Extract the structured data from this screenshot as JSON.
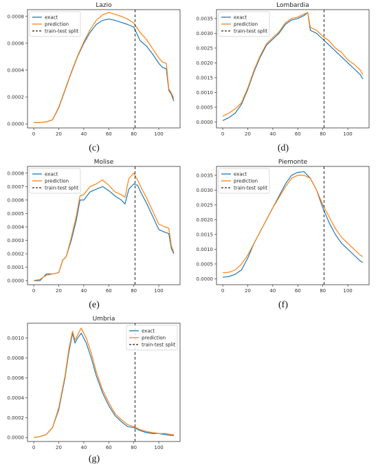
{
  "colors": {
    "exact": "#1f77b4",
    "prediction": "#ff7f0e",
    "split": "#222222"
  },
  "chart_data": [
    {
      "caption": "(c)",
      "type": "line",
      "title": "Lazio",
      "xlim": [
        -5,
        117
      ],
      "ylim": [
        -3e-05,
        0.00085
      ],
      "xticks": [
        0,
        20,
        40,
        60,
        80,
        100
      ],
      "yticks": [
        0.0,
        0.0002,
        0.0004,
        0.0006,
        0.0008
      ],
      "ytick_labels": [
        "0.0000",
        "0.0002",
        "0.0004",
        "0.0006",
        "0.0008"
      ],
      "split_x": 81,
      "legend": {
        "position": "top-left",
        "entries": [
          "exact",
          "prediction",
          "train-test split"
        ]
      },
      "series": [
        {
          "name": "exact",
          "x": [
            0,
            5,
            10,
            15,
            20,
            25,
            30,
            35,
            40,
            45,
            50,
            55,
            60,
            65,
            70,
            75,
            80,
            85,
            90,
            95,
            100,
            103,
            106,
            108,
            110,
            112
          ],
          "values": [
            1e-05,
            1e-05,
            1.5e-05,
            3e-05,
            0.00012,
            0.00025,
            0.00038,
            0.0005,
            0.0006,
            0.00068,
            0.00074,
            0.00077,
            0.00078,
            0.00077,
            0.000755,
            0.00074,
            0.00072,
            0.00062,
            0.00058,
            0.00052,
            0.00045,
            0.00042,
            0.00041,
            0.00025,
            0.00022,
            0.00017
          ]
        },
        {
          "name": "prediction",
          "x": [
            0,
            5,
            10,
            15,
            20,
            25,
            30,
            35,
            40,
            45,
            50,
            55,
            60,
            65,
            70,
            75,
            80,
            85,
            90,
            95,
            100,
            103,
            106,
            108,
            110,
            112
          ],
          "values": [
            1e-05,
            1e-05,
            1.5e-05,
            3e-05,
            0.000125,
            0.000255,
            0.000385,
            0.000505,
            0.00061,
            0.0007,
            0.00077,
            0.00081,
            0.00083,
            0.000815,
            0.0008,
            0.00078,
            0.00075,
            0.00068,
            0.00063,
            0.00056,
            0.00049,
            0.00046,
            0.00045,
            0.00026,
            0.00023,
            0.00019
          ]
        }
      ]
    },
    {
      "caption": "(d)",
      "type": "line",
      "title": "Lombardia",
      "xlim": [
        -5,
        117
      ],
      "ylim": [
        -0.0002,
        0.0038
      ],
      "xticks": [
        0,
        20,
        40,
        60,
        80,
        100
      ],
      "yticks": [
        0.0,
        0.0005,
        0.001,
        0.0015,
        0.002,
        0.0025,
        0.003,
        0.0035
      ],
      "ytick_labels": [
        "0.0000",
        "0.0005",
        "0.0010",
        "0.0015",
        "0.0020",
        "0.0025",
        "0.0030",
        "0.0035"
      ],
      "split_x": 81,
      "legend": {
        "position": "top-left",
        "entries": [
          "exact",
          "prediction",
          "train-test split"
        ]
      },
      "series": [
        {
          "name": "exact",
          "x": [
            0,
            5,
            10,
            15,
            20,
            25,
            30,
            35,
            40,
            45,
            50,
            55,
            60,
            65,
            68,
            70,
            75,
            80,
            85,
            90,
            95,
            100,
            105,
            110,
            112
          ],
          "values": [
            5e-05,
            0.00015,
            0.0003,
            0.0006,
            0.0011,
            0.0017,
            0.0022,
            0.0026,
            0.0028,
            0.003,
            0.0033,
            0.00345,
            0.0035,
            0.0036,
            0.0037,
            0.0031,
            0.003,
            0.0028,
            0.0026,
            0.0024,
            0.0022,
            0.002,
            0.0018,
            0.0016,
            0.00145
          ]
        },
        {
          "name": "prediction",
          "x": [
            0,
            5,
            10,
            15,
            20,
            25,
            30,
            35,
            40,
            45,
            50,
            55,
            60,
            65,
            68,
            70,
            75,
            80,
            85,
            90,
            95,
            100,
            105,
            110,
            112
          ],
          "values": [
            0.0002,
            0.0003,
            0.00045,
            0.00065,
            0.00115,
            0.00175,
            0.00225,
            0.00265,
            0.00285,
            0.00305,
            0.00335,
            0.0035,
            0.00355,
            0.00365,
            0.0037,
            0.0032,
            0.0031,
            0.0029,
            0.00275,
            0.0025,
            0.00235,
            0.0021,
            0.00195,
            0.00175,
            0.0016
          ]
        }
      ]
    },
    {
      "caption": "(e)",
      "type": "line",
      "title": "Molise",
      "xlim": [
        -5,
        117
      ],
      "ylim": [
        -3e-05,
        0.00085
      ],
      "xticks": [
        0,
        20,
        40,
        60,
        80,
        100
      ],
      "yticks": [
        0.0,
        0.0001,
        0.0002,
        0.0003,
        0.0004,
        0.0005,
        0.0006,
        0.0007,
        0.0008
      ],
      "ytick_labels": [
        "0.0000",
        "0.0001",
        "0.0002",
        "0.0003",
        "0.0004",
        "0.0005",
        "0.0006",
        "0.0007",
        "0.0008"
      ],
      "split_x": 81,
      "legend": {
        "position": "top-left",
        "entries": [
          "exact",
          "prediction",
          "train-test split"
        ]
      },
      "series": [
        {
          "name": "exact",
          "x": [
            0,
            5,
            10,
            15,
            20,
            23,
            26,
            30,
            34,
            37,
            40,
            45,
            50,
            55,
            60,
            65,
            70,
            73,
            76,
            80,
            83,
            86,
            90,
            95,
            100,
            105,
            108,
            110,
            112
          ],
          "values": [
            0.0,
            0.0,
            5e-05,
            5e-05,
            6e-05,
            0.00015,
            0.00018,
            0.0003,
            0.00045,
            0.0006,
            0.0006,
            0.00066,
            0.00068,
            0.0007,
            0.00067,
            0.00063,
            0.0006,
            0.00057,
            0.00068,
            0.00072,
            0.00071,
            0.00065,
            0.00058,
            0.00048,
            0.00038,
            0.00036,
            0.00035,
            0.00024,
            0.0002
          ]
        },
        {
          "name": "prediction",
          "x": [
            0,
            5,
            10,
            15,
            20,
            23,
            26,
            30,
            34,
            37,
            40,
            45,
            50,
            55,
            60,
            65,
            70,
            73,
            76,
            80,
            83,
            86,
            90,
            95,
            100,
            105,
            108,
            110,
            112
          ],
          "values": [
            0.0,
            1e-05,
            4e-05,
            5e-05,
            6e-05,
            0.00015,
            0.00018,
            0.00032,
            0.00048,
            0.00063,
            0.00064,
            0.0007,
            0.00072,
            0.00075,
            0.00071,
            0.00066,
            0.00064,
            0.00062,
            0.00076,
            0.0008,
            0.00075,
            0.00069,
            0.00062,
            0.00052,
            0.00042,
            0.0004,
            0.00039,
            0.00026,
            0.00021
          ]
        }
      ]
    },
    {
      "caption": "(f)",
      "type": "line",
      "title": "Piemonte",
      "xlim": [
        -5,
        117
      ],
      "ylim": [
        -0.0002,
        0.0038
      ],
      "xticks": [
        0,
        20,
        40,
        60,
        80,
        100
      ],
      "yticks": [
        0.0,
        0.0005,
        0.001,
        0.0015,
        0.002,
        0.0025,
        0.003,
        0.0035
      ],
      "ytick_labels": [
        "0.0000",
        "0.0005",
        "0.0010",
        "0.0015",
        "0.0020",
        "0.0025",
        "0.0030",
        "0.0035"
      ],
      "split_x": 81,
      "legend": {
        "position": "top-left",
        "entries": [
          "exact",
          "prediction",
          "train-test split"
        ]
      },
      "series": [
        {
          "name": "exact",
          "x": [
            0,
            5,
            10,
            15,
            20,
            25,
            30,
            35,
            40,
            45,
            50,
            55,
            60,
            65,
            70,
            75,
            80,
            85,
            90,
            95,
            100,
            105,
            110,
            112
          ],
          "values": [
            5e-05,
            8e-05,
            0.00015,
            0.0003,
            0.0007,
            0.0012,
            0.0016,
            0.002,
            0.0024,
            0.0028,
            0.0032,
            0.0035,
            0.0036,
            0.00362,
            0.0034,
            0.003,
            0.0024,
            0.0019,
            0.0015,
            0.0012,
            0.001,
            0.0008,
            0.0006,
            0.00055
          ]
        },
        {
          "name": "prediction",
          "x": [
            0,
            5,
            10,
            15,
            20,
            25,
            30,
            35,
            40,
            45,
            50,
            55,
            60,
            65,
            70,
            75,
            80,
            85,
            90,
            95,
            100,
            105,
            110,
            112
          ],
          "values": [
            0.0002,
            0.00022,
            0.0003,
            0.0005,
            0.0008,
            0.0012,
            0.0016,
            0.002,
            0.0024,
            0.00275,
            0.0031,
            0.0034,
            0.0035,
            0.0035,
            0.0034,
            0.003,
            0.0025,
            0.0021,
            0.0017,
            0.0014,
            0.0012,
            0.001,
            0.0008,
            0.00075
          ]
        }
      ]
    },
    {
      "caption": "(g)",
      "type": "line",
      "title": "Umbria",
      "xlim": [
        -5,
        117
      ],
      "ylim": [
        -4e-05,
        0.00115
      ],
      "xticks": [
        0,
        20,
        40,
        60,
        80,
        100
      ],
      "yticks": [
        0.0,
        0.0002,
        0.0004,
        0.0006,
        0.0008,
        0.001
      ],
      "ytick_labels": [
        "0.0000",
        "0.0002",
        "0.0004",
        "0.0006",
        "0.0008",
        "0.0010"
      ],
      "split_x": 81,
      "legend": {
        "position": "top-right",
        "entries": [
          "exact",
          "prediction",
          "train-test split"
        ]
      },
      "series": [
        {
          "name": "exact",
          "x": [
            0,
            5,
            10,
            15,
            20,
            25,
            28,
            31,
            33,
            35,
            38,
            42,
            46,
            50,
            55,
            60,
            65,
            70,
            75,
            80,
            85,
            90,
            95,
            100,
            105,
            110,
            112
          ],
          "values": [
            0.0,
            1e-05,
            3e-05,
            0.0001,
            0.00028,
            0.0006,
            0.00085,
            0.00105,
            0.00095,
            0.001,
            0.00105,
            0.00095,
            0.0008,
            0.00062,
            0.00045,
            0.00032,
            0.00022,
            0.00016,
            0.00011,
            0.0001,
            7e-05,
            5e-05,
            4e-05,
            4e-05,
            3e-05,
            2e-05,
            2e-05
          ]
        },
        {
          "name": "prediction",
          "x": [
            0,
            5,
            10,
            15,
            20,
            25,
            28,
            31,
            33,
            35,
            38,
            42,
            46,
            50,
            55,
            60,
            65,
            70,
            75,
            80,
            85,
            90,
            95,
            100,
            105,
            110,
            112
          ],
          "values": [
            0.0,
            1e-05,
            3e-05,
            0.0001,
            0.0003,
            0.00062,
            0.00088,
            0.00107,
            0.00098,
            0.00103,
            0.0011,
            0.001,
            0.00085,
            0.00066,
            0.00048,
            0.00035,
            0.00024,
            0.00018,
            0.00013,
            0.00011,
            8e-05,
            6e-05,
            5e-05,
            4e-05,
            4e-05,
            3e-05,
            3e-05
          ]
        }
      ]
    }
  ]
}
